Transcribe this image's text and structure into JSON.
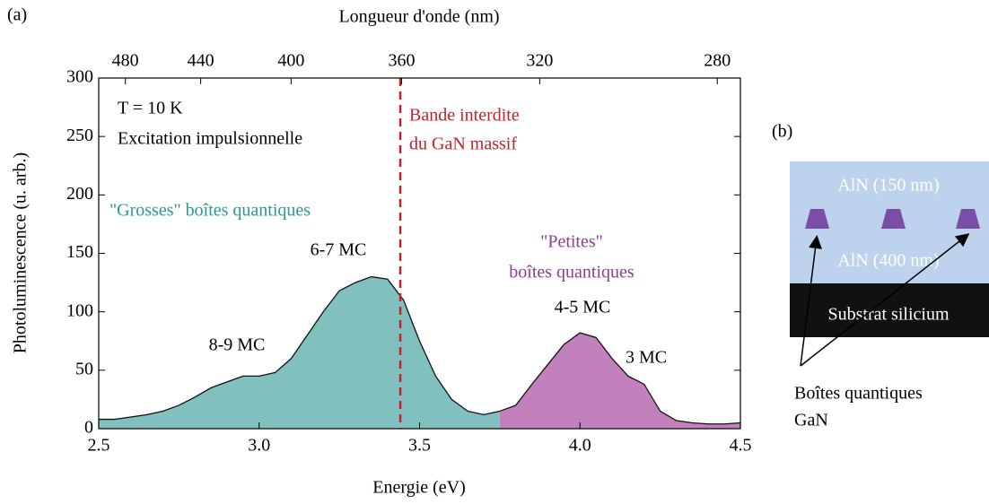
{
  "panel_label": "(a)",
  "chart_data": {
    "type": "area",
    "x_label": "Energie (eV)",
    "y_label": "Photoluminescence (u. arb.)",
    "x2_label": "Longueur d'onde (nm)",
    "xlim": [
      2.5,
      4.5
    ],
    "ylim": [
      0,
      300
    ],
    "xticks": [
      2.5,
      {
        "value": 3,
        "label": "3.0"
      },
      3.5,
      {
        "value": 4,
        "label": "4.0"
      },
      4.5
    ],
    "yticks": [
      0,
      50,
      100,
      150,
      200,
      250,
      300
    ],
    "x2ticks": [
      480,
      440,
      400,
      360,
      320,
      280
    ],
    "bandgap_energy": 3.44,
    "bandgap_color": "#c8202a",
    "series": [
      {
        "color": "#80c0bf",
        "x": [
          2.5,
          2.55,
          2.6,
          2.65,
          2.7,
          2.75,
          2.8,
          2.85,
          2.9,
          2.95,
          3.0,
          3.05,
          3.1,
          3.15,
          3.2,
          3.25,
          3.3,
          3.35,
          3.4,
          3.45,
          3.5,
          3.55,
          3.6,
          3.65,
          3.7,
          3.75
        ],
        "values": [
          8,
          8,
          10,
          12,
          15,
          20,
          27,
          35,
          40,
          45,
          45,
          48,
          60,
          80,
          100,
          118,
          125,
          130,
          128,
          110,
          75,
          45,
          25,
          15,
          12,
          15
        ]
      },
      {
        "color": "#c281bd",
        "x": [
          3.75,
          3.8,
          3.85,
          3.9,
          3.95,
          4.0,
          4.05,
          4.1,
          4.15,
          4.2,
          4.25,
          4.3,
          4.35,
          4.4,
          4.45,
          4.5
        ],
        "values": [
          15,
          20,
          38,
          55,
          72,
          82,
          78,
          60,
          45,
          38,
          15,
          7,
          5,
          4,
          4,
          5
        ]
      }
    ],
    "annotations": [
      {
        "text": "T = 10 K",
        "color": "#000000"
      },
      {
        "text": "Excitation impulsionnelle",
        "color": "#000000"
      },
      {
        "text": "Bande interdite",
        "color": "#c8202a"
      },
      {
        "text": "du GaN massif",
        "color": "#c8202a"
      },
      {
        "text": "\"Grosses\" boîtes quantiques",
        "color": "#2a9a8e"
      },
      {
        "text": "6-7 MC",
        "color": "#000000"
      },
      {
        "text": "8-9 MC",
        "color": "#000000"
      },
      {
        "text": "\"Petites\"",
        "color": "#8e3d91"
      },
      {
        "text": "boîtes quantiques",
        "color": "#8e3d91"
      },
      {
        "text": "4-5 MC",
        "color": "#000000"
      },
      {
        "text": "3 MC",
        "color": "#000000"
      }
    ]
  },
  "diagram": {
    "label": "(b)",
    "layers": [
      "AlN (150 nm)",
      "AlN (400 nm)",
      "Substrat silicium"
    ],
    "caption": [
      "Boîtes quantiques",
      "GaN"
    ]
  }
}
